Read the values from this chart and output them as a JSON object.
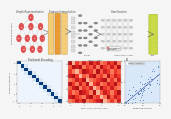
{
  "bg_color": "#f5f5f5",
  "section_labels": {
    "graph_repr": "Graph Representation",
    "feature_interp": "Feature Interpolation",
    "classification": "Classification",
    "pos_encoding": "Positional Encoding",
    "heatmap_title": "Multi-head Attention",
    "scatter_title": "Cosine Similarity"
  },
  "left_axis_label": "Encoding Sequence",
  "node_color": "#e05050",
  "edge_color": "#aaaaaa",
  "bar_color_light": "#f5c96e",
  "bar_color_dark": "#e8952a",
  "output_color": "#c8d840",
  "transformer_color": "#cccccc",
  "legend_red": "Multi Positives",
  "legend_white": "Contrastive",
  "heatmap_red_data": [
    [
      0.9,
      0.3,
      0.7,
      0.5,
      0.8,
      0.6,
      0.9,
      0.7,
      0.8,
      0.5,
      0.6,
      0.8,
      0.7,
      0.9,
      0.5
    ],
    [
      0.6,
      0.9,
      0.8,
      0.9,
      0.5,
      0.7,
      0.6,
      0.8,
      0.5,
      0.9,
      0.7,
      0.6,
      0.8,
      0.6,
      0.9
    ],
    [
      0.7,
      0.5,
      0.3,
      0.6,
      0.9,
      0.8,
      0.7,
      0.5,
      0.9,
      0.6,
      0.8,
      0.7,
      0.5,
      0.7,
      0.6
    ],
    [
      0.8,
      0.9,
      0.7,
      0.3,
      0.6,
      0.5,
      0.8,
      0.9,
      0.6,
      0.7,
      0.5,
      0.9,
      0.6,
      0.8,
      0.7
    ],
    [
      0.5,
      0.6,
      0.8,
      0.7,
      0.9,
      0.3,
      0.5,
      0.6,
      0.7,
      0.8,
      0.9,
      0.5,
      0.7,
      0.5,
      0.8
    ],
    [
      0.9,
      0.7,
      0.5,
      0.8,
      0.6,
      0.9,
      0.3,
      0.7,
      0.8,
      0.5,
      0.6,
      0.8,
      0.7,
      0.9,
      0.6
    ],
    [
      0.6,
      0.8,
      0.9,
      0.5,
      0.7,
      0.6,
      0.8,
      0.3,
      0.5,
      0.9,
      0.7,
      0.6,
      0.8,
      0.6,
      0.5
    ],
    [
      0.7,
      0.5,
      0.6,
      0.9,
      0.8,
      0.7,
      0.5,
      0.9,
      0.3,
      0.6,
      0.8,
      0.7,
      0.5,
      0.7,
      0.9
    ],
    [
      0.8,
      0.9,
      0.7,
      0.6,
      0.5,
      0.8,
      0.9,
      0.6,
      0.7,
      0.3,
      0.5,
      0.9,
      0.6,
      0.8,
      0.7
    ],
    [
      0.5,
      0.6,
      0.8,
      0.7,
      0.9,
      0.5,
      0.6,
      0.7,
      0.8,
      0.9,
      0.3,
      0.5,
      0.7,
      0.5,
      0.8
    ]
  ],
  "blue_heatmap_data": [
    [
      0.95,
      0.05,
      0.05,
      0.05,
      0.05,
      0.05,
      0.05,
      0.05,
      0.05,
      0.05,
      0.05,
      0.05
    ],
    [
      0.05,
      0.95,
      0.15,
      0.05,
      0.05,
      0.05,
      0.05,
      0.05,
      0.05,
      0.05,
      0.05,
      0.05
    ],
    [
      0.05,
      0.15,
      0.95,
      0.15,
      0.05,
      0.05,
      0.05,
      0.05,
      0.05,
      0.05,
      0.05,
      0.05
    ],
    [
      0.05,
      0.05,
      0.15,
      0.95,
      0.15,
      0.05,
      0.05,
      0.05,
      0.05,
      0.05,
      0.05,
      0.05
    ],
    [
      0.05,
      0.05,
      0.05,
      0.15,
      0.95,
      0.15,
      0.05,
      0.05,
      0.05,
      0.05,
      0.05,
      0.05
    ],
    [
      0.05,
      0.05,
      0.05,
      0.05,
      0.15,
      0.95,
      0.15,
      0.05,
      0.05,
      0.05,
      0.05,
      0.05
    ],
    [
      0.05,
      0.05,
      0.05,
      0.05,
      0.05,
      0.15,
      0.95,
      0.15,
      0.05,
      0.05,
      0.05,
      0.05
    ],
    [
      0.05,
      0.05,
      0.05,
      0.05,
      0.05,
      0.05,
      0.15,
      0.95,
      0.15,
      0.05,
      0.05,
      0.05
    ],
    [
      0.05,
      0.05,
      0.05,
      0.05,
      0.05,
      0.05,
      0.05,
      0.15,
      0.95,
      0.15,
      0.05,
      0.05
    ],
    [
      0.05,
      0.05,
      0.05,
      0.05,
      0.05,
      0.05,
      0.05,
      0.05,
      0.15,
      0.95,
      0.15,
      0.05
    ],
    [
      0.05,
      0.05,
      0.05,
      0.05,
      0.05,
      0.05,
      0.05,
      0.05,
      0.05,
      0.15,
      0.95,
      0.15
    ],
    [
      0.05,
      0.05,
      0.05,
      0.05,
      0.05,
      0.05,
      0.05,
      0.05,
      0.05,
      0.05,
      0.15,
      0.95
    ]
  ]
}
